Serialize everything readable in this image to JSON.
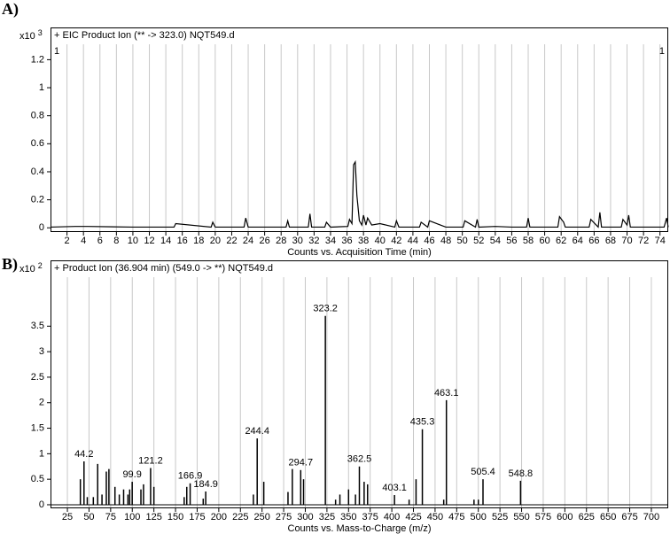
{
  "chart_data": [
    {
      "type": "line",
      "panel_label": "A)",
      "title": "+ EIC Product Ion (** -> 323.0) NQT549.d",
      "y_scale_label": "x10",
      "y_scale_exponent": "3",
      "cursor_labels": [
        "1",
        "1"
      ],
      "x_label": "Counts vs. Acquisition Time (min)",
      "color": "#000000",
      "x": [
        0,
        3,
        4.5,
        10,
        15,
        15.2,
        19.5,
        19.7,
        20,
        23.5,
        23.7,
        24,
        28.6,
        28.8,
        29,
        31.3,
        31.5,
        31.7,
        33.3,
        33.5,
        34,
        36.1,
        36.3,
        36.6,
        36.8,
        37,
        37.2,
        37.5,
        37.8,
        38,
        38.3,
        38.5,
        39,
        40,
        41.8,
        42,
        42.3,
        44.8,
        45,
        45.8,
        46,
        48,
        50.1,
        50.3,
        51.6,
        51.8,
        52,
        54,
        56,
        57.8,
        58,
        58.2,
        61.6,
        61.8,
        62.3,
        62.5,
        65.4,
        65.6,
        66.5,
        66.7,
        66.9,
        69.3,
        69.5,
        70,
        70.2,
        70.4,
        74.5,
        74.8,
        75
      ],
      "values": [
        0.005,
        0.01,
        0.01,
        0.005,
        0.005,
        0.03,
        0.005,
        0.04,
        0.005,
        0.005,
        0.07,
        0.005,
        0.005,
        0.05,
        0.005,
        0.005,
        0.1,
        0.005,
        0.005,
        0.04,
        0.005,
        0.01,
        0.06,
        0.03,
        0.45,
        0.47,
        0.23,
        0.05,
        0.02,
        0.09,
        0.02,
        0.07,
        0.02,
        0.03,
        0.005,
        0.05,
        0.005,
        0.005,
        0.04,
        0.005,
        0.05,
        0.005,
        0.005,
        0.05,
        0.005,
        0.06,
        0.005,
        0.01,
        0.005,
        0.005,
        0.07,
        0.005,
        0.005,
        0.08,
        0.04,
        0.005,
        0.005,
        0.06,
        0.005,
        0.11,
        0.005,
        0.005,
        0.06,
        0.02,
        0.09,
        0.005,
        0.005,
        0.07,
        0.005
      ],
      "xlim": [
        0,
        75
      ],
      "xticks": [
        2,
        4,
        6,
        8,
        10,
        12,
        14,
        16,
        18,
        20,
        22,
        24,
        26,
        28,
        30,
        32,
        34,
        36,
        38,
        40,
        42,
        44,
        46,
        48,
        50,
        52,
        54,
        56,
        58,
        60,
        62,
        64,
        66,
        68,
        70,
        72,
        74
      ],
      "ylim": [
        -0.03,
        1.31
      ],
      "yticks": [
        0,
        0.2,
        0.4,
        0.6,
        0.8,
        1,
        1.2
      ],
      "grid": "vertical"
    },
    {
      "type": "bar",
      "panel_label": "B)",
      "title": "+ Product Ion (36.904 min) (549.0 -> **) NQT549.d",
      "y_scale_label": "x10",
      "y_scale_exponent": "2",
      "x_label": "Counts vs. Mass-to-Charge (m/z)",
      "color": "#000000",
      "x": [
        40,
        44.2,
        48,
        55,
        60,
        65,
        70,
        73,
        80,
        85,
        90,
        95,
        97,
        99.9,
        110,
        113,
        121.2,
        125,
        160,
        163,
        166.9,
        182,
        184.9,
        240,
        244.4,
        252,
        280,
        285,
        294.7,
        298,
        323.2,
        335,
        340,
        350,
        358,
        362.5,
        368,
        372,
        403.1,
        420,
        428,
        435.3,
        460,
        463.1,
        495,
        500,
        505.4,
        548.8
      ],
      "values": [
        0.5,
        0.85,
        0.15,
        0.15,
        0.8,
        0.2,
        0.65,
        0.7,
        0.35,
        0.2,
        0.3,
        0.2,
        0.3,
        0.45,
        0.3,
        0.4,
        0.72,
        0.35,
        0.15,
        0.35,
        0.42,
        0.12,
        0.26,
        0.2,
        1.3,
        0.45,
        0.25,
        0.7,
        0.68,
        0.5,
        3.7,
        0.1,
        0.2,
        0.3,
        0.2,
        0.75,
        0.45,
        0.4,
        0.19,
        0.1,
        0.5,
        1.48,
        0.1,
        2.05,
        0.1,
        0.1,
        0.5,
        0.47
      ],
      "x_labels": [
        null,
        "44.2",
        null,
        null,
        null,
        null,
        null,
        null,
        null,
        null,
        null,
        null,
        null,
        "99.9",
        null,
        null,
        "121.2",
        null,
        null,
        null,
        "166.9",
        null,
        "184.9",
        null,
        "244.4",
        null,
        null,
        null,
        "294.7",
        null,
        "323.2",
        null,
        null,
        null,
        null,
        "362.5",
        null,
        null,
        "403.1",
        null,
        null,
        "435.3",
        null,
        "463.1",
        null,
        null,
        "505.4",
        "548.8"
      ],
      "xlim": [
        5.5,
        719.5
      ],
      "xticks": [
        25,
        50,
        75,
        100,
        125,
        150,
        175,
        200,
        225,
        250,
        275,
        300,
        325,
        350,
        375,
        400,
        425,
        450,
        475,
        500,
        525,
        550,
        575,
        600,
        625,
        650,
        675,
        700
      ],
      "ylim": [
        -0.07,
        4.46
      ],
      "yticks": [
        0,
        0.5,
        1,
        1.5,
        2,
        2.5,
        3,
        3.5
      ],
      "grid": "vertical"
    }
  ]
}
